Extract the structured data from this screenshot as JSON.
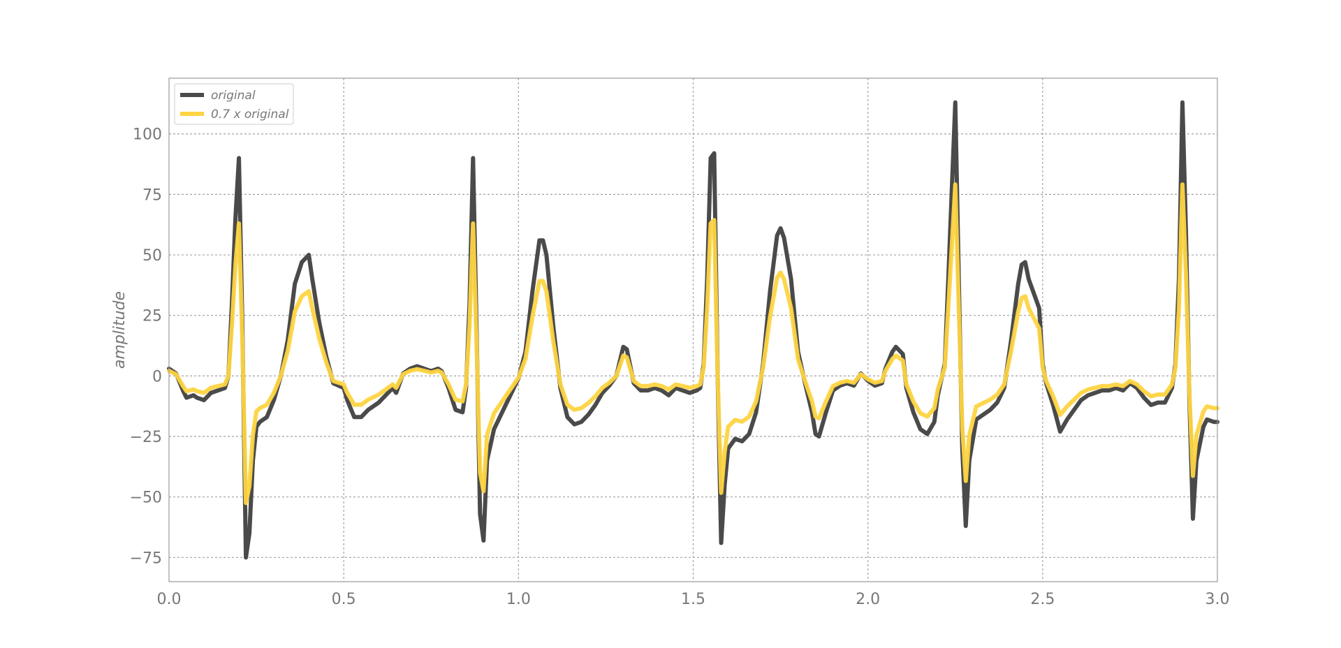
{
  "chart_data": {
    "type": "line",
    "title": "",
    "xlabel": "",
    "ylabel": "amplitude",
    "xlim": [
      0.0,
      3.0
    ],
    "ylim": [
      -85,
      123
    ],
    "grid": true,
    "legend_position": "top-left",
    "x_ticks": [
      "0.0",
      "0.5",
      "1.0",
      "1.5",
      "2.0",
      "2.5",
      "3.0"
    ],
    "y_ticks": [
      "−75",
      "−50",
      "−25",
      "0",
      "25",
      "50",
      "75",
      "100"
    ],
    "series": [
      {
        "name": "original",
        "color": "#4a4a4a",
        "points": [
          [
            0.0,
            3
          ],
          [
            0.02,
            1
          ],
          [
            0.04,
            -6
          ],
          [
            0.05,
            -9
          ],
          [
            0.07,
            -8
          ],
          [
            0.08,
            -9
          ],
          [
            0.1,
            -10
          ],
          [
            0.12,
            -7
          ],
          [
            0.14,
            -6
          ],
          [
            0.16,
            -5
          ],
          [
            0.17,
            0
          ],
          [
            0.18,
            30
          ],
          [
            0.19,
            65
          ],
          [
            0.2,
            90
          ],
          [
            0.21,
            20
          ],
          [
            0.22,
            -75
          ],
          [
            0.23,
            -65
          ],
          [
            0.24,
            -35
          ],
          [
            0.25,
            -21
          ],
          [
            0.26,
            -19
          ],
          [
            0.28,
            -17
          ],
          [
            0.3,
            -10
          ],
          [
            0.32,
            0
          ],
          [
            0.34,
            15
          ],
          [
            0.36,
            38
          ],
          [
            0.38,
            47
          ],
          [
            0.4,
            50
          ],
          [
            0.41,
            40
          ],
          [
            0.43,
            22
          ],
          [
            0.45,
            8
          ],
          [
            0.47,
            -3
          ],
          [
            0.5,
            -5
          ],
          [
            0.51,
            -10
          ],
          [
            0.53,
            -17
          ],
          [
            0.55,
            -17
          ],
          [
            0.57,
            -14
          ],
          [
            0.6,
            -11
          ],
          [
            0.62,
            -8
          ],
          [
            0.64,
            -5
          ],
          [
            0.65,
            -7
          ],
          [
            0.67,
            1
          ],
          [
            0.69,
            3
          ],
          [
            0.71,
            4
          ],
          [
            0.73,
            3
          ],
          [
            0.75,
            2
          ],
          [
            0.77,
            3
          ],
          [
            0.78,
            2
          ],
          [
            0.8,
            -5
          ],
          [
            0.82,
            -14
          ],
          [
            0.84,
            -15
          ],
          [
            0.85,
            -5
          ],
          [
            0.86,
            30
          ],
          [
            0.87,
            90
          ],
          [
            0.88,
            20
          ],
          [
            0.89,
            -57
          ],
          [
            0.9,
            -68
          ],
          [
            0.91,
            -35
          ],
          [
            0.93,
            -22
          ],
          [
            0.95,
            -16
          ],
          [
            0.97,
            -10
          ],
          [
            0.99,
            -4
          ],
          [
            1.0,
            -1
          ],
          [
            1.02,
            10
          ],
          [
            1.04,
            35
          ],
          [
            1.06,
            56
          ],
          [
            1.07,
            56
          ],
          [
            1.08,
            50
          ],
          [
            1.1,
            20
          ],
          [
            1.12,
            -5
          ],
          [
            1.14,
            -17
          ],
          [
            1.16,
            -20
          ],
          [
            1.18,
            -19
          ],
          [
            1.2,
            -16
          ],
          [
            1.22,
            -12
          ],
          [
            1.24,
            -7
          ],
          [
            1.26,
            -4
          ],
          [
            1.28,
            0
          ],
          [
            1.3,
            12
          ],
          [
            1.31,
            11
          ],
          [
            1.33,
            -3
          ],
          [
            1.35,
            -6
          ],
          [
            1.37,
            -6
          ],
          [
            1.39,
            -5
          ],
          [
            1.41,
            -6
          ],
          [
            1.43,
            -8
          ],
          [
            1.45,
            -5
          ],
          [
            1.47,
            -6
          ],
          [
            1.49,
            -7
          ],
          [
            1.51,
            -6
          ],
          [
            1.52,
            -5
          ],
          [
            1.53,
            5
          ],
          [
            1.54,
            40
          ],
          [
            1.55,
            90
          ],
          [
            1.56,
            92
          ],
          [
            1.57,
            0
          ],
          [
            1.58,
            -69
          ],
          [
            1.59,
            -45
          ],
          [
            1.6,
            -30
          ],
          [
            1.62,
            -26
          ],
          [
            1.64,
            -27
          ],
          [
            1.66,
            -24
          ],
          [
            1.68,
            -15
          ],
          [
            1.7,
            5
          ],
          [
            1.72,
            35
          ],
          [
            1.74,
            58
          ],
          [
            1.75,
            61
          ],
          [
            1.76,
            57
          ],
          [
            1.78,
            40
          ],
          [
            1.8,
            10
          ],
          [
            1.82,
            -3
          ],
          [
            1.84,
            -15
          ],
          [
            1.85,
            -24
          ],
          [
            1.86,
            -25
          ],
          [
            1.88,
            -15
          ],
          [
            1.9,
            -6
          ],
          [
            1.92,
            -4
          ],
          [
            1.94,
            -3
          ],
          [
            1.96,
            -4
          ],
          [
            1.98,
            1
          ],
          [
            2.0,
            -2
          ],
          [
            2.02,
            -4
          ],
          [
            2.04,
            -3
          ],
          [
            2.05,
            3
          ],
          [
            2.07,
            10
          ],
          [
            2.08,
            12
          ],
          [
            2.1,
            9
          ],
          [
            2.11,
            -5
          ],
          [
            2.13,
            -15
          ],
          [
            2.15,
            -22
          ],
          [
            2.17,
            -24
          ],
          [
            2.19,
            -19
          ],
          [
            2.2,
            -8
          ],
          [
            2.22,
            5
          ],
          [
            2.23,
            40
          ],
          [
            2.25,
            113
          ],
          [
            2.26,
            40
          ],
          [
            2.27,
            -30
          ],
          [
            2.28,
            -62
          ],
          [
            2.29,
            -35
          ],
          [
            2.31,
            -18
          ],
          [
            2.33,
            -16
          ],
          [
            2.35,
            -14
          ],
          [
            2.37,
            -11
          ],
          [
            2.39,
            -5
          ],
          [
            2.41,
            15
          ],
          [
            2.43,
            38
          ],
          [
            2.44,
            46
          ],
          [
            2.45,
            47
          ],
          [
            2.46,
            40
          ],
          [
            2.48,
            32
          ],
          [
            2.49,
            28
          ],
          [
            2.5,
            5
          ],
          [
            2.51,
            -3
          ],
          [
            2.53,
            -12
          ],
          [
            2.55,
            -23
          ],
          [
            2.57,
            -18
          ],
          [
            2.59,
            -14
          ],
          [
            2.61,
            -10
          ],
          [
            2.63,
            -8
          ],
          [
            2.65,
            -7
          ],
          [
            2.67,
            -6
          ],
          [
            2.69,
            -6
          ],
          [
            2.71,
            -5
          ],
          [
            2.73,
            -6
          ],
          [
            2.75,
            -3
          ],
          [
            2.77,
            -5
          ],
          [
            2.79,
            -9
          ],
          [
            2.81,
            -12
          ],
          [
            2.83,
            -11
          ],
          [
            2.85,
            -11
          ],
          [
            2.86,
            -8
          ],
          [
            2.87,
            -5
          ],
          [
            2.88,
            5
          ],
          [
            2.89,
            40
          ],
          [
            2.9,
            113
          ],
          [
            2.91,
            60
          ],
          [
            2.92,
            -10
          ],
          [
            2.93,
            -59
          ],
          [
            2.94,
            -35
          ],
          [
            2.96,
            -21
          ],
          [
            2.97,
            -18
          ],
          [
            2.99,
            -19
          ],
          [
            3.0,
            -19
          ]
        ]
      },
      {
        "name": "0.7 x original",
        "color": "#fdd441",
        "scale_of_original": 0.7
      }
    ]
  }
}
